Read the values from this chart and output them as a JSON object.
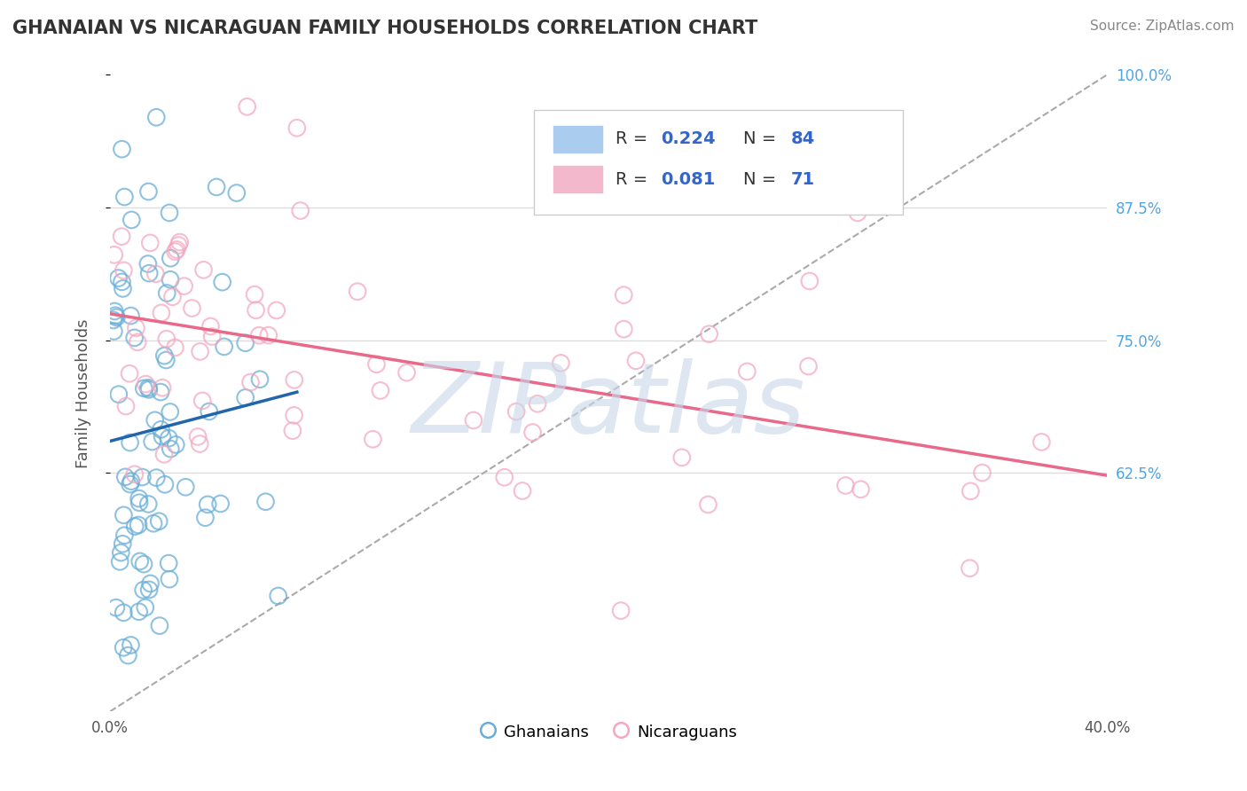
{
  "title": "GHANAIAN VS NICARAGUAN FAMILY HOUSEHOLDS CORRELATION CHART",
  "source": "Source: ZipAtlas.com",
  "ylabel": "Family Households",
  "xlim": [
    0.0,
    0.4
  ],
  "ylim": [
    0.4,
    1.0
  ],
  "R_blue": 0.224,
  "N_blue": 84,
  "R_pink": 0.081,
  "N_pink": 71,
  "blue_color": "#6aaed6",
  "pink_color": "#f4a8bf",
  "blue_line_color": "#2166ac",
  "pink_line_color": "#e8698a",
  "ref_line_color": "#aaaaaa",
  "legend_text_color": "#3366cc",
  "watermark": "ZIPatlas",
  "watermark_color": "#c8d8e8",
  "title_color": "#333333",
  "background_color": "#ffffff",
  "grid_color": "#dddddd",
  "ytick_color": "#4da6e8",
  "label_color": "#555555"
}
